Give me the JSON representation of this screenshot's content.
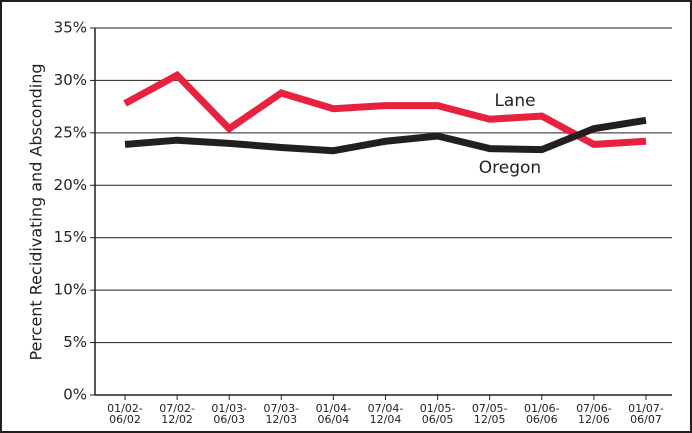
{
  "chart_data": {
    "type": "line",
    "y_label": "Percent Recidivating and Absconding",
    "categories": [
      "01/02-\n06/02",
      "07/02-\n12/02",
      "01/03-\n06/03",
      "07/03-\n12/03",
      "01/04-\n06/04",
      "07/04-\n12/04",
      "01/05-\n06/05",
      "07/05-\n12/05",
      "01/06-\n06/06",
      "07/06-\n12/06",
      "01/07-\n06/07"
    ],
    "series": [
      {
        "name": "Lane",
        "color": "#e8213f",
        "values": [
          27.8,
          30.5,
          25.4,
          28.8,
          27.3,
          27.6,
          27.6,
          26.3,
          26.6,
          23.9,
          24.2
        ]
      },
      {
        "name": "Oregon",
        "color": "#231f20",
        "values": [
          23.9,
          24.3,
          24.0,
          23.6,
          23.3,
          24.2,
          24.7,
          23.5,
          23.4,
          25.4,
          26.2
        ]
      }
    ],
    "ylim": [
      0,
      35
    ],
    "yticks": [
      {
        "value": 0,
        "label": "0%"
      },
      {
        "value": 5,
        "label": "5%"
      },
      {
        "value": 10,
        "label": "10%"
      },
      {
        "value": 15,
        "label": "15%"
      },
      {
        "value": 20,
        "label": "20%"
      },
      {
        "value": 25,
        "label": "25%"
      },
      {
        "value": 30,
        "label": "30%"
      },
      {
        "value": 35,
        "label": "35%"
      }
    ],
    "grid": true
  }
}
